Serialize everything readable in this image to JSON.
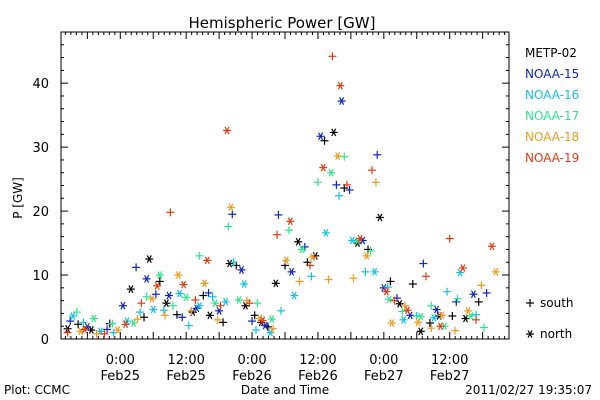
{
  "chart_data": {
    "type": "scatter",
    "title": "Hemispheric Power [GW]",
    "xlabel": "Date and Time",
    "ylabel": "P [GW]",
    "xlim": [
      -0.45,
      2.95
    ],
    "ylim": [
      0,
      48
    ],
    "x_unit": "days since 2011/02/25 00:00 UT",
    "y_ticks": [
      0,
      10,
      20,
      30,
      40
    ],
    "x_ticks": [
      {
        "x": 0.0,
        "time": "0:00",
        "date": "Feb25"
      },
      {
        "x": 0.5,
        "time": "12:00",
        "date": "Feb25"
      },
      {
        "x": 1.0,
        "time": "0:00",
        "date": "Feb26"
      },
      {
        "x": 1.5,
        "time": "12:00",
        "date": "Feb26"
      },
      {
        "x": 2.0,
        "time": "0:00",
        "date": "Feb27"
      },
      {
        "x": 2.5,
        "time": "12:00",
        "date": "Feb27"
      }
    ],
    "series": [
      {
        "name": "METP-02",
        "color": "#000000",
        "points": [
          [
            -0.4,
            1.6
          ],
          [
            -0.32,
            2.3
          ],
          [
            -0.22,
            1.4
          ],
          [
            -0.08,
            2.4
          ],
          [
            0.08,
            7.8
          ],
          [
            0.18,
            3.4
          ],
          [
            0.22,
            12.5
          ],
          [
            0.3,
            9.0
          ],
          [
            0.35,
            5.6
          ],
          [
            0.43,
            3.8
          ],
          [
            0.55,
            4.2
          ],
          [
            0.63,
            6.8
          ],
          [
            0.68,
            3.7
          ],
          [
            0.78,
            2.6
          ],
          [
            0.83,
            11.8
          ],
          [
            0.88,
            11.5
          ],
          [
            0.95,
            5.2
          ],
          [
            1.02,
            3.7
          ],
          [
            1.07,
            2.6
          ],
          [
            1.12,
            1.9
          ],
          [
            1.18,
            8.7
          ],
          [
            1.25,
            11.5
          ],
          [
            1.35,
            15.2
          ],
          [
            1.42,
            12.0
          ],
          [
            1.48,
            13.0
          ],
          [
            1.55,
            31.0
          ],
          [
            1.62,
            32.3
          ],
          [
            1.7,
            23.6
          ],
          [
            1.8,
            15.0
          ],
          [
            1.88,
            14.0
          ],
          [
            1.97,
            19.0
          ],
          [
            2.05,
            9.0
          ],
          [
            2.12,
            5.5
          ],
          [
            2.22,
            8.6
          ],
          [
            2.28,
            1.2
          ],
          [
            2.35,
            2.5
          ],
          [
            2.42,
            3.6
          ],
          [
            2.52,
            3.6
          ],
          [
            2.62,
            3.2
          ],
          [
            2.72,
            5.8
          ]
        ]
      },
      {
        "name": "NOAA-15",
        "color": "#0a24c6",
        "points": [
          [
            -0.38,
            2.8
          ],
          [
            -0.25,
            1.9
          ],
          [
            -0.1,
            1.5
          ],
          [
            0.02,
            5.2
          ],
          [
            0.12,
            11.2
          ],
          [
            0.2,
            9.4
          ],
          [
            0.27,
            7.0
          ],
          [
            0.37,
            6.8
          ],
          [
            0.47,
            3.4
          ],
          [
            0.58,
            4.8
          ],
          [
            0.67,
            7.2
          ],
          [
            0.75,
            4.4
          ],
          [
            0.85,
            19.5
          ],
          [
            0.92,
            10.8
          ],
          [
            1.0,
            2.8
          ],
          [
            1.1,
            2.1
          ],
          [
            1.2,
            19.4
          ],
          [
            1.3,
            10.5
          ],
          [
            1.4,
            14.4
          ],
          [
            1.52,
            31.7
          ],
          [
            1.64,
            24.1
          ],
          [
            1.68,
            37.2
          ],
          [
            1.74,
            23.3
          ],
          [
            1.84,
            15.4
          ],
          [
            1.95,
            28.8
          ],
          [
            2.0,
            8.0
          ],
          [
            2.1,
            6.4
          ],
          [
            2.2,
            3.7
          ],
          [
            2.3,
            11.8
          ],
          [
            2.4,
            4.6
          ],
          [
            2.55,
            5.8
          ],
          [
            2.68,
            7.0
          ],
          [
            2.78,
            7.2
          ]
        ]
      },
      {
        "name": "NOAA-16",
        "color": "#14c0e6",
        "points": [
          [
            -0.36,
            3.6
          ],
          [
            -0.28,
            2.6
          ],
          [
            -0.15,
            1.2
          ],
          [
            -0.05,
            1.0
          ],
          [
            0.05,
            2.8
          ],
          [
            0.15,
            4.2
          ],
          [
            0.25,
            4.6
          ],
          [
            0.33,
            4.5
          ],
          [
            0.45,
            7.1
          ],
          [
            0.52,
            2.1
          ],
          [
            0.6,
            5.2
          ],
          [
            0.7,
            6.6
          ],
          [
            0.8,
            5.8
          ],
          [
            0.86,
            12.0
          ],
          [
            0.94,
            8.6
          ],
          [
            1.03,
            1.4
          ],
          [
            1.14,
            1.0
          ],
          [
            1.22,
            4.4
          ],
          [
            1.32,
            6.8
          ],
          [
            1.45,
            9.8
          ],
          [
            1.56,
            16.6
          ],
          [
            1.66,
            22.4
          ],
          [
            1.76,
            15.4
          ],
          [
            1.86,
            10.5
          ],
          [
            1.93,
            10.5
          ],
          [
            2.03,
            8.1
          ],
          [
            2.15,
            3.0
          ],
          [
            2.25,
            3.6
          ],
          [
            2.38,
            3.3
          ],
          [
            2.48,
            7.4
          ],
          [
            2.58,
            10.4
          ],
          [
            2.7,
            3.8
          ]
        ]
      },
      {
        "name": "NOAA-17",
        "color": "#2ee68a",
        "points": [
          [
            -0.33,
            4.2
          ],
          [
            -0.2,
            3.2
          ],
          [
            -0.06,
            2.4
          ],
          [
            0.1,
            2.5
          ],
          [
            0.2,
            6.6
          ],
          [
            0.3,
            10.0
          ],
          [
            0.4,
            5.2
          ],
          [
            0.5,
            6.5
          ],
          [
            0.6,
            13.0
          ],
          [
            0.72,
            5.6
          ],
          [
            0.82,
            17.6
          ],
          [
            0.9,
            6.1
          ],
          [
            1.04,
            5.6
          ],
          [
            1.15,
            3.1
          ],
          [
            1.28,
            17.0
          ],
          [
            1.38,
            14.0
          ],
          [
            1.5,
            24.5
          ],
          [
            1.6,
            26.0
          ],
          [
            1.7,
            28.5
          ],
          [
            1.8,
            15.3
          ],
          [
            1.9,
            13.8
          ],
          [
            2.04,
            6.2
          ],
          [
            2.14,
            4.3
          ],
          [
            2.28,
            3.5
          ],
          [
            2.36,
            5.2
          ],
          [
            2.46,
            2.0
          ],
          [
            2.56,
            6.3
          ],
          [
            2.66,
            3.6
          ],
          [
            2.76,
            1.8
          ]
        ]
      },
      {
        "name": "NOAA-18",
        "color": "#ef9a1a",
        "points": [
          [
            -0.3,
            1.2
          ],
          [
            -0.18,
            0.8
          ],
          [
            -0.02,
            1.4
          ],
          [
            0.13,
            3.1
          ],
          [
            0.24,
            6.3
          ],
          [
            0.34,
            3.7
          ],
          [
            0.44,
            10.0
          ],
          [
            0.54,
            4.4
          ],
          [
            0.64,
            8.7
          ],
          [
            0.74,
            3.0
          ],
          [
            0.84,
            20.6
          ],
          [
            0.96,
            6.0
          ],
          [
            1.06,
            3.2
          ],
          [
            1.16,
            1.6
          ],
          [
            1.26,
            12.3
          ],
          [
            1.36,
            9.0
          ],
          [
            1.46,
            12.8
          ],
          [
            1.58,
            9.3
          ],
          [
            1.65,
            28.6
          ],
          [
            1.77,
            9.5
          ],
          [
            1.87,
            13.0
          ],
          [
            1.94,
            24.5
          ],
          [
            2.06,
            2.5
          ],
          [
            2.16,
            5.2
          ],
          [
            2.26,
            2.6
          ],
          [
            2.36,
            1.7
          ],
          [
            2.44,
            3.7
          ],
          [
            2.54,
            1.3
          ],
          [
            2.64,
            4.4
          ],
          [
            2.74,
            8.4
          ],
          [
            2.85,
            10.5
          ]
        ]
      },
      {
        "name": "NOAA-19",
        "color": "#e63b10",
        "points": [
          [
            -0.4,
            1.0
          ],
          [
            -0.27,
            1.5
          ],
          [
            -0.12,
            0.8
          ],
          [
            0.04,
            2.3
          ],
          [
            0.16,
            5.6
          ],
          [
            0.28,
            8.3
          ],
          [
            0.38,
            19.8
          ],
          [
            0.48,
            8.5
          ],
          [
            0.57,
            6.1
          ],
          [
            0.66,
            12.3
          ],
          [
            0.76,
            5.2
          ],
          [
            0.81,
            32.6
          ],
          [
            0.98,
            5.6
          ],
          [
            1.08,
            2.9
          ],
          [
            1.19,
            16.3
          ],
          [
            1.29,
            18.4
          ],
          [
            1.44,
            11.5
          ],
          [
            1.54,
            26.8
          ],
          [
            1.61,
            44.2
          ],
          [
            1.67,
            39.6
          ],
          [
            1.72,
            24.1
          ],
          [
            1.82,
            15.7
          ],
          [
            1.91,
            26.4
          ],
          [
            2.02,
            7.4
          ],
          [
            2.08,
            6.0
          ],
          [
            2.18,
            4.5
          ],
          [
            2.32,
            9.8
          ],
          [
            2.43,
            2.0
          ],
          [
            2.5,
            15.7
          ],
          [
            2.6,
            11.1
          ],
          [
            2.7,
            3.0
          ],
          [
            2.82,
            14.5
          ]
        ]
      }
    ],
    "symbol_legend": [
      {
        "symbol": "+",
        "label": "south"
      },
      {
        "symbol": "*",
        "label": "north"
      }
    ]
  },
  "footer": {
    "left": "Plot: CCMC",
    "right": "2011/02/27 19:35:07"
  }
}
